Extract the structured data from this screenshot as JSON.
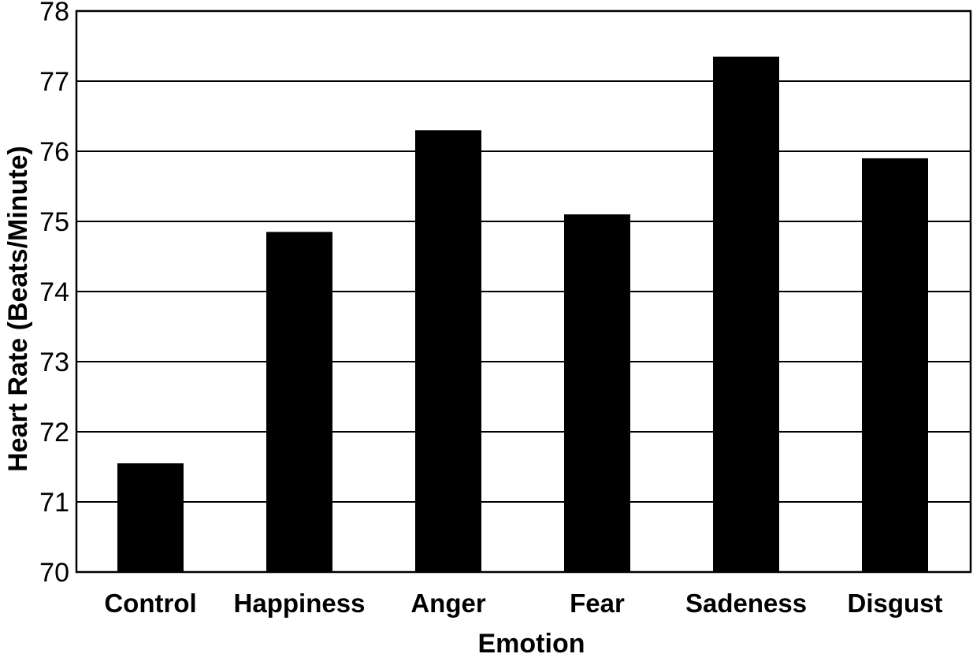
{
  "chart_data": {
    "type": "bar",
    "xlabel": "Emotion",
    "ylabel": "Heart Rate (Beats/Minute)",
    "ylim": [
      70,
      78
    ],
    "yticks": [
      "70",
      "71",
      "72",
      "73",
      "74",
      "75",
      "76",
      "77",
      "78"
    ],
    "categories": [
      "Control",
      "Happiness",
      "Anger",
      "Fear",
      "Sadeness",
      "Disgust"
    ],
    "values": [
      71.55,
      74.85,
      76.3,
      75.1,
      77.35,
      75.9
    ],
    "grid": "horizontal",
    "legend": "none",
    "bar_color": "#000000"
  }
}
